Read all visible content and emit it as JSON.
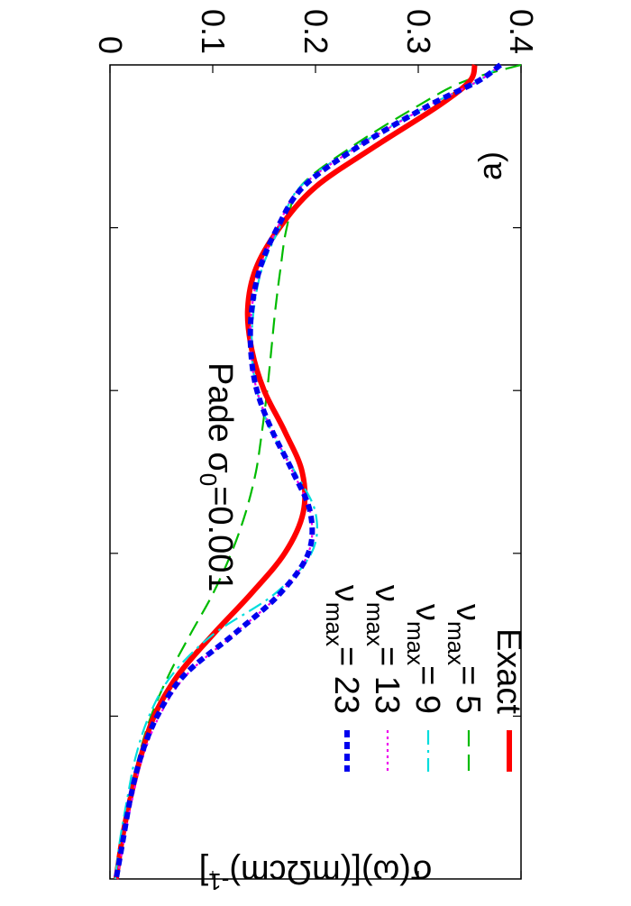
{
  "chart_data": {
    "type": "line",
    "panel_label": "a)",
    "annotation": "Pade σ0=0.001",
    "ylabel": "σ(ω)[(mΩcm)-1]",
    "xlabel": "",
    "ylim": [
      0,
      0.4
    ],
    "y_ticks": [
      "0",
      "0.1",
      "0.2",
      "0.3",
      "0.4"
    ],
    "x_tick_count": 5,
    "xlim": [
      0,
      1
    ],
    "grid": false,
    "legend_position": "top-right",
    "series": [
      {
        "name": "Exact",
        "color": "#ff0000",
        "dash": "solid",
        "x": [
          0,
          0.02,
          0.05,
          0.1,
          0.15,
          0.2,
          0.25,
          0.3,
          0.35,
          0.4,
          0.45,
          0.5,
          0.55,
          0.6,
          0.65,
          0.7,
          0.75,
          0.8,
          0.85,
          0.9,
          0.95,
          1.0
        ],
        "y": [
          0.355,
          0.35,
          0.32,
          0.258,
          0.2,
          0.165,
          0.142,
          0.134,
          0.138,
          0.15,
          0.17,
          0.187,
          0.188,
          0.17,
          0.137,
          0.1,
          0.066,
          0.043,
          0.03,
          0.02,
          0.012,
          0.006
        ]
      },
      {
        "name": "5",
        "color": "#00bb00",
        "dash": "long",
        "x": [
          0,
          0.02,
          0.05,
          0.1,
          0.15,
          0.2,
          0.25,
          0.3,
          0.35,
          0.4,
          0.45,
          0.5,
          0.55,
          0.6,
          0.65,
          0.7,
          0.75,
          0.8,
          0.85,
          0.9,
          0.95,
          1.0
        ],
        "y": [
          0.4,
          0.345,
          0.3,
          0.236,
          0.185,
          0.172,
          0.166,
          0.161,
          0.157,
          0.153,
          0.148,
          0.142,
          0.132,
          0.118,
          0.1,
          0.078,
          0.057,
          0.04,
          0.028,
          0.02,
          0.013,
          0.007
        ]
      },
      {
        "name": "9",
        "color": "#00dddd",
        "dash": "dashdot",
        "x": [
          0,
          0.02,
          0.05,
          0.1,
          0.15,
          0.2,
          0.25,
          0.3,
          0.35,
          0.4,
          0.45,
          0.5,
          0.55,
          0.6,
          0.65,
          0.7,
          0.75,
          0.8,
          0.85,
          0.9,
          0.95,
          1.0
        ],
        "y": [
          0.38,
          0.358,
          0.31,
          0.24,
          0.185,
          0.165,
          0.148,
          0.14,
          0.138,
          0.143,
          0.157,
          0.18,
          0.2,
          0.196,
          0.16,
          0.1,
          0.06,
          0.038,
          0.025,
          0.017,
          0.01,
          0.005
        ]
      },
      {
        "name": "13",
        "color": "#ee00ee",
        "dash": "dot",
        "x": [
          0,
          0.02,
          0.05,
          0.1,
          0.15,
          0.2,
          0.25,
          0.3,
          0.35,
          0.4,
          0.45,
          0.5,
          0.55,
          0.6,
          0.65,
          0.7,
          0.75,
          0.8,
          0.85,
          0.9,
          0.95,
          1.0
        ],
        "y": [
          0.38,
          0.358,
          0.31,
          0.242,
          0.186,
          0.163,
          0.146,
          0.138,
          0.137,
          0.143,
          0.158,
          0.178,
          0.195,
          0.193,
          0.165,
          0.12,
          0.074,
          0.048,
          0.032,
          0.022,
          0.014,
          0.007
        ]
      },
      {
        "name": "23",
        "color": "#0000ee",
        "dash": "shortthick",
        "x": [
          0,
          0.02,
          0.05,
          0.1,
          0.15,
          0.2,
          0.25,
          0.3,
          0.35,
          0.4,
          0.45,
          0.5,
          0.55,
          0.6,
          0.65,
          0.7,
          0.75,
          0.8,
          0.85,
          0.9,
          0.95,
          1.0
        ],
        "y": [
          0.38,
          0.358,
          0.31,
          0.242,
          0.188,
          0.163,
          0.146,
          0.138,
          0.137,
          0.143,
          0.158,
          0.178,
          0.195,
          0.193,
          0.165,
          0.12,
          0.072,
          0.046,
          0.03,
          0.02,
          0.013,
          0.006
        ]
      }
    ],
    "legend": [
      {
        "label": "Exact",
        "prefix": "",
        "value": ""
      },
      {
        "label": "",
        "prefix": "νmax=",
        "value": "5"
      },
      {
        "label": "",
        "prefix": "νmax=",
        "value": "9"
      },
      {
        "label": "",
        "prefix": "νmax=",
        "value": "13"
      },
      {
        "label": "",
        "prefix": "νmax=",
        "value": "23"
      }
    ]
  }
}
